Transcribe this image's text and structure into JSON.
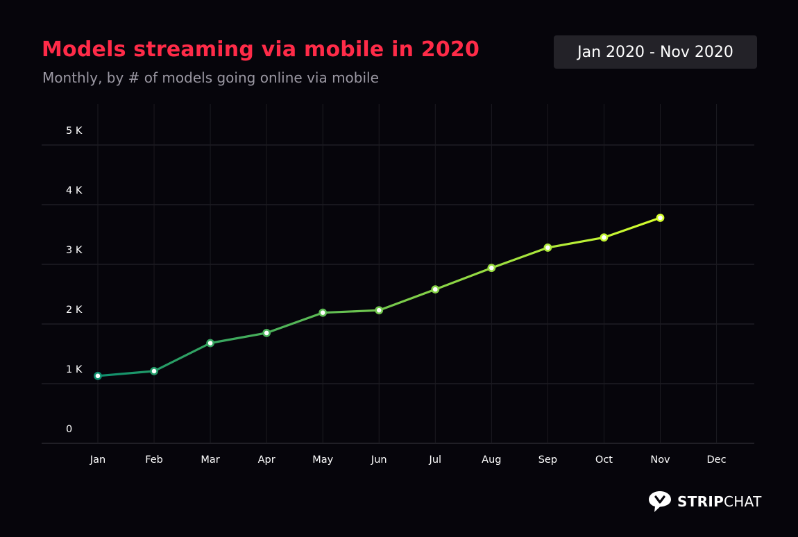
{
  "header": {
    "title": "Models streaming via mobile in 2020",
    "subtitle": "Monthly, by # of models going online via mobile",
    "date_range": "Jan 2020 - Nov 2020"
  },
  "brand": {
    "name_bold": "STRIP",
    "name_regular": "CHAT",
    "icon": "stripchat-logo-icon"
  },
  "colors": {
    "background": "#06050b",
    "title": "#ff2b48",
    "line_start": "#0e8f6e",
    "line_end": "#d6ff2d",
    "grid": "#2a2930"
  },
  "chart_data": {
    "type": "line",
    "title": "Models streaming via mobile in 2020",
    "subtitle": "Monthly, by # of models going online via mobile",
    "xlabel": "",
    "ylabel": "",
    "categories": [
      "Jan",
      "Feb",
      "Mar",
      "Apr",
      "May",
      "Jun",
      "Jul",
      "Aug",
      "Sep",
      "Oct",
      "Nov",
      "Dec"
    ],
    "y_ticks": [
      {
        "value": 0,
        "label": "0"
      },
      {
        "value": 1000,
        "label": "1 K"
      },
      {
        "value": 2000,
        "label": "2 K"
      },
      {
        "value": 3000,
        "label": "3 K"
      },
      {
        "value": 4000,
        "label": "4 K"
      },
      {
        "value": 5000,
        "label": "5 K"
      }
    ],
    "ylim": [
      0,
      5000
    ],
    "grid": true,
    "series": [
      {
        "name": "Models streaming via mobile",
        "values": [
          1130,
          1210,
          1680,
          1850,
          2190,
          2230,
          2580,
          2940,
          3280,
          3450,
          3780,
          null
        ]
      }
    ]
  }
}
